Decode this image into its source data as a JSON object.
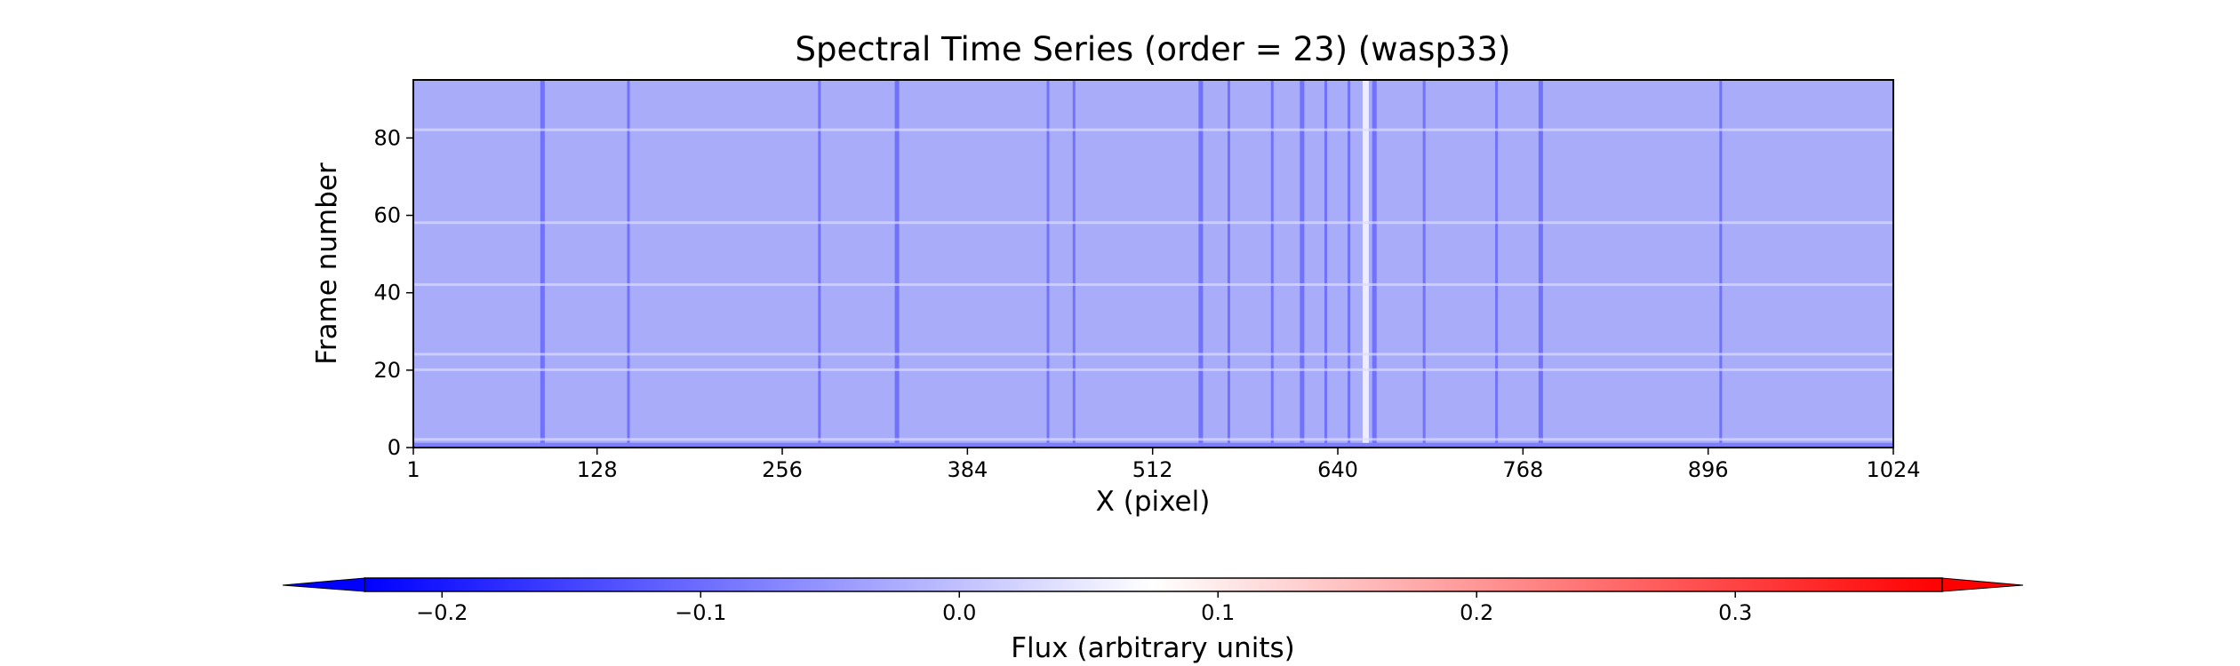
{
  "chart_data": {
    "type": "heatmap",
    "title": "Spectral Time Series (order = 23) (wasp33)",
    "xlabel": "X (pixel)",
    "ylabel": "Frame number",
    "x_range": [
      1,
      1024
    ],
    "y_range": [
      0,
      95
    ],
    "x_ticks": [
      "1",
      "128",
      "256",
      "384",
      "512",
      "640",
      "768",
      "896",
      "1024"
    ],
    "x_tick_values": [
      1,
      128,
      256,
      384,
      512,
      640,
      768,
      896,
      1024
    ],
    "y_ticks": [
      "0",
      "20",
      "40",
      "60",
      "80"
    ],
    "y_tick_values": [
      0,
      20,
      40,
      60,
      80
    ],
    "colormap": "bwr",
    "colorbar": {
      "label": "Flux (arbitrary units)",
      "range": [
        -0.23,
        0.38
      ],
      "ticks": [
        "−0.2",
        "−0.1",
        "0.0",
        "0.1",
        "0.2",
        "0.3"
      ],
      "tick_values": [
        -0.2,
        -0.1,
        0.0,
        0.1,
        0.2,
        0.3
      ],
      "extend": "both",
      "orientation": "horizontal"
    },
    "background_level": -0.05,
    "absorption_columns_x": [
      90,
      150,
      282,
      335,
      440,
      458,
      545,
      565,
      595,
      615,
      632,
      648,
      665,
      700,
      750,
      780,
      905
    ],
    "emission_column_x": 659,
    "bright_rows_frame": [
      2,
      20,
      24,
      42,
      58,
      82
    ],
    "grid": false,
    "colors": {
      "low": "#0000ff",
      "mid": "#ffffff",
      "high": "#ff0000"
    }
  }
}
